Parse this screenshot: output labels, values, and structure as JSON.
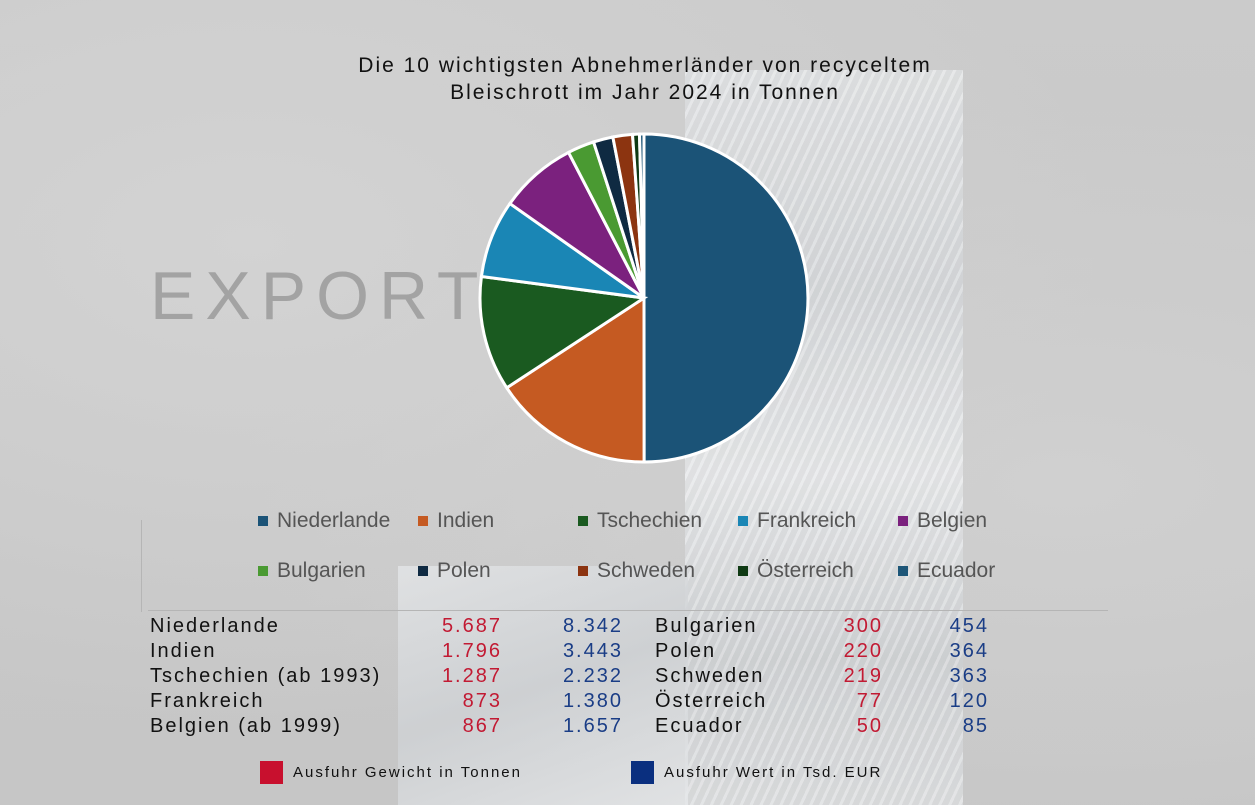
{
  "title_line1": "Die 10 wichtigsten Abnehmerländer von recyceltem",
  "title_line2": "Bleischrott im Jahr 2024 in Tonnen",
  "background_word": "EXPORT",
  "chart_data": {
    "type": "pie",
    "title": "Die 10 wichtigsten Abnehmerländer von recyceltem Bleischrott im Jahr 2024 in Tonnen",
    "categories": [
      "Niederlande",
      "Indien",
      "Tschechien",
      "Frankreich",
      "Belgien",
      "Bulgarien",
      "Polen",
      "Schweden",
      "Österreich",
      "Ecuador"
    ],
    "values": [
      5687,
      1796,
      1287,
      873,
      867,
      300,
      220,
      219,
      77,
      50
    ],
    "colors": [
      "#1b5377",
      "#c55a22",
      "#1a5a20",
      "#1a86b5",
      "#7b217e",
      "#4a9a32",
      "#0f2a42",
      "#8c3410",
      "#0f3a14",
      "#1d5678"
    ],
    "legend_position": "bottom"
  },
  "legend": [
    {
      "label": "Niederlande",
      "color": "#1b5377"
    },
    {
      "label": "Indien",
      "color": "#c55a22"
    },
    {
      "label": "Tschechien",
      "color": "#1a5a20"
    },
    {
      "label": "Frankreich",
      "color": "#1a86b5"
    },
    {
      "label": "Belgien",
      "color": "#7b217e"
    },
    {
      "label": "Bulgarien",
      "color": "#4a9a32"
    },
    {
      "label": "Polen",
      "color": "#0f2a42"
    },
    {
      "label": "Schweden",
      "color": "#8c3410"
    },
    {
      "label": "Österreich",
      "color": "#0f3a14"
    },
    {
      "label": "Ecuador",
      "color": "#1d5678"
    }
  ],
  "table_left": [
    {
      "name": "Niederlande",
      "weight": "5.687",
      "value": "8.342"
    },
    {
      "name": "Indien",
      "weight": "1.796",
      "value": "3.443"
    },
    {
      "name": "Tschechien (ab 1993)",
      "weight": "1.287",
      "value": "2.232"
    },
    {
      "name": "Frankreich",
      "weight": "873",
      "value": "1.380"
    },
    {
      "name": "Belgien (ab 1999)",
      "weight": "867",
      "value": "1.657"
    }
  ],
  "table_right": [
    {
      "name": "Bulgarien",
      "weight": "300",
      "value": "454"
    },
    {
      "name": "Polen",
      "weight": "220",
      "value": "364"
    },
    {
      "name": "Schweden",
      "weight": "219",
      "value": "363"
    },
    {
      "name": "Österreich",
      "weight": "77",
      "value": "120"
    },
    {
      "name": "Ecuador",
      "weight": "50",
      "value": "85"
    }
  ],
  "key": {
    "weight_label": "Ausfuhr Gewicht in Tonnen",
    "weight_color": "#c8102e",
    "value_label": "Ausfuhr Wert in Tsd. EUR",
    "value_color": "#0a2f7f"
  }
}
